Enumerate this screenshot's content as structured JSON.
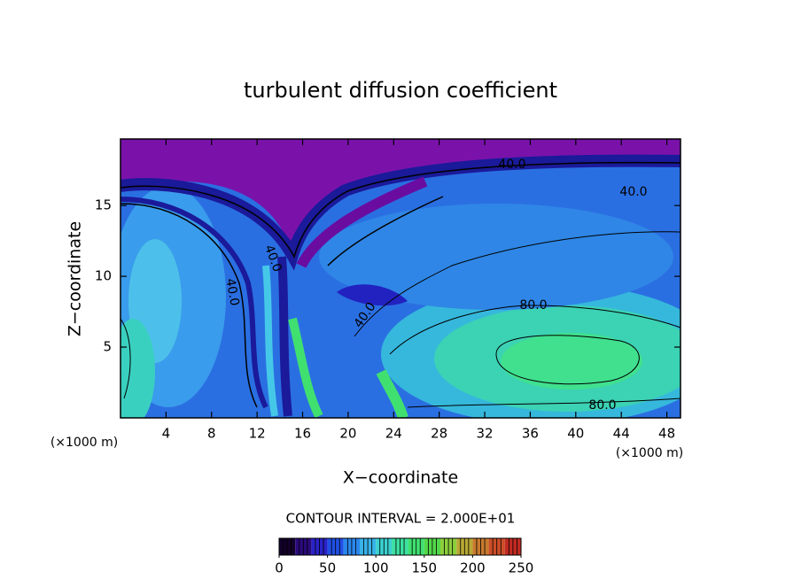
{
  "chart_data": {
    "type": "contour",
    "title": "turbulent diffusion coefficient",
    "x_label": "X−coordinate",
    "y_label": "Z−coordinate",
    "x_unit_label": "(×1000 m)",
    "xlim": [
      0,
      49.2
    ],
    "xticks": [
      4,
      8,
      12,
      16,
      20,
      24,
      28,
      32,
      36,
      40,
      44,
      48
    ],
    "ylim": [
      0,
      19.7
    ],
    "yticks": [
      5,
      10,
      15
    ],
    "contour_labels": [
      "40.0",
      "40.0",
      "40.0",
      "40.0",
      "40.0",
      "80.0",
      "80.0"
    ],
    "colorbar": {
      "label": "CONTOUR INTERVAL = 2.000E+01",
      "lim": [
        0,
        250
      ],
      "ticks": [
        0,
        50,
        100,
        150,
        200,
        250
      ],
      "colors": [
        "#12002a",
        "#2a0a7a",
        "#2a22c8",
        "#2050e6",
        "#2a86ec",
        "#38b2e8",
        "#3ad0d0",
        "#3ce0a0",
        "#40e070",
        "#52d84a",
        "#8ccf3c",
        "#b8a834",
        "#c87a2e",
        "#cc4e28",
        "#c02a22"
      ]
    }
  }
}
